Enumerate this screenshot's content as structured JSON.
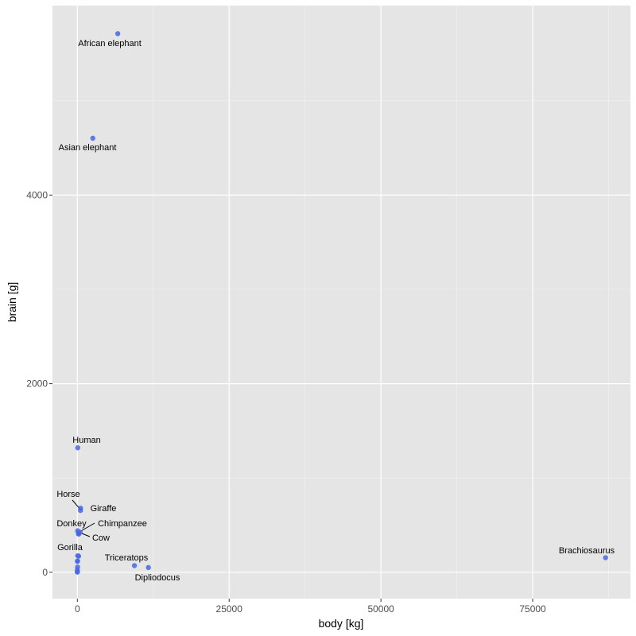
{
  "chart_data": {
    "type": "scatter",
    "xlabel": "body [kg]",
    "ylabel": "brain [g]",
    "xlim": [
      -4100,
      91100
    ],
    "ylim": [
      -280,
      6010
    ],
    "x_ticks": [
      0,
      25000,
      50000,
      75000
    ],
    "x_tick_labels": [
      "0",
      "25000",
      "50000",
      "75000"
    ],
    "y_ticks": [
      0,
      2000,
      4000
    ],
    "y_tick_labels": [
      "0",
      "2000",
      "4000"
    ],
    "grid": true,
    "background": "#e5e5e5",
    "point_color": "#4a67e0",
    "points": [
      {
        "x": 6654,
        "y": 5712,
        "label": "African elephant"
      },
      {
        "x": 2547,
        "y": 4603,
        "label": "Asian elephant"
      },
      {
        "x": 62,
        "y": 1320,
        "label": "Human"
      },
      {
        "x": 521,
        "y": 655,
        "label": "Horse"
      },
      {
        "x": 529,
        "y": 680,
        "label": "Giraffe"
      },
      {
        "x": 187,
        "y": 419,
        "label": "Donkey"
      },
      {
        "x": 52,
        "y": 440,
        "label": "Chimpanzee"
      },
      {
        "x": 465,
        "y": 423,
        "label": "Cow"
      },
      {
        "x": 207,
        "y": 406,
        "label": ""
      },
      {
        "x": 207,
        "y": 406,
        "label": ""
      },
      {
        "x": 207,
        "y": 170,
        "label": "Gorilla"
      },
      {
        "x": 60,
        "y": 175,
        "label": ""
      },
      {
        "x": 36,
        "y": 119,
        "label": ""
      },
      {
        "x": 35,
        "y": 56,
        "label": ""
      },
      {
        "x": 10,
        "y": 115,
        "label": ""
      },
      {
        "x": 3,
        "y": 25,
        "label": ""
      },
      {
        "x": 1,
        "y": 6,
        "label": ""
      },
      {
        "x": 0.1,
        "y": 1,
        "label": ""
      },
      {
        "x": 9400,
        "y": 70,
        "label": "Triceratops"
      },
      {
        "x": 11700,
        "y": 50,
        "label": "Dipliodocus"
      },
      {
        "x": 87000,
        "y": 154,
        "label": "Brachiosaurus"
      }
    ]
  }
}
